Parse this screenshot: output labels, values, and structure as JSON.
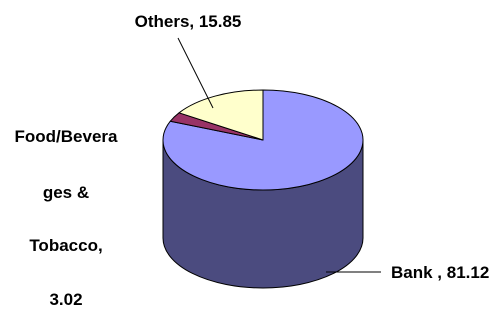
{
  "chart_data": {
    "type": "pie",
    "title": "",
    "slices": [
      {
        "name": "Bank",
        "value": 81.12,
        "label_lines": [
          "Bank , 81.12"
        ],
        "color": "#9999ff",
        "side": "#4b4b7f"
      },
      {
        "name": "Food/Beverages & Tobacco",
        "value": 3.02,
        "label_lines": [
          "Food/Bevera",
          "ges &",
          "Tobacco,",
          "3.02"
        ],
        "color": "#993366",
        "side": "#5c1f3d"
      },
      {
        "name": "Others",
        "value": 15.85,
        "label_lines": [
          "Others,  15.85"
        ],
        "color": "#ffffcc",
        "side": "#bfbf99"
      }
    ],
    "legend": "none",
    "style": "3d"
  }
}
